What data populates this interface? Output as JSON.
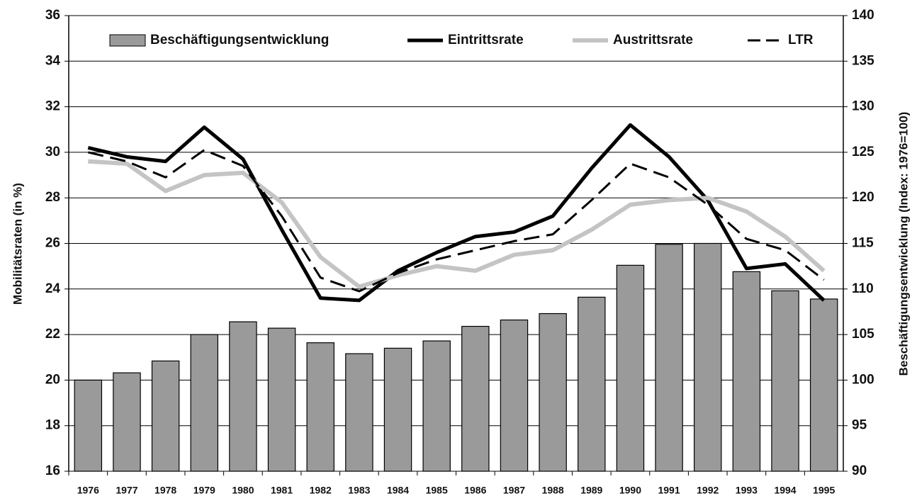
{
  "chart_data": {
    "type": "bar_line",
    "categories": [
      "1976",
      "1977",
      "1978",
      "1979",
      "1980",
      "1981",
      "1982",
      "1983",
      "1984",
      "1985",
      "1986",
      "1987",
      "1988",
      "1989",
      "1990",
      "1991",
      "1992",
      "1993",
      "1994",
      "1995"
    ],
    "y_label": "Mobilitätsraten (in %)",
    "y2_label": "Beschäftigungsentwicklung (Index: 1976=100)",
    "ylim": [
      16,
      36
    ],
    "yticks": [
      16,
      18,
      20,
      22,
      24,
      26,
      28,
      30,
      32,
      34,
      36
    ],
    "y2lim": [
      90,
      140
    ],
    "y2ticks": [
      90,
      95,
      100,
      105,
      110,
      115,
      120,
      125,
      130,
      135,
      140
    ],
    "grid": true,
    "legend": "top",
    "series": [
      {
        "name": "Beschäftigungsentwicklung",
        "type": "bar",
        "axis": "y2",
        "color": "#9a9a9a",
        "values": [
          100.0,
          100.8,
          102.1,
          105.0,
          106.4,
          105.7,
          104.1,
          102.9,
          103.5,
          104.3,
          105.9,
          106.6,
          107.3,
          109.1,
          112.6,
          114.9,
          115.0,
          111.9,
          109.8,
          108.9
        ]
      },
      {
        "name": "Eintrittsrate",
        "type": "line",
        "color": "#000000",
        "width": 5,
        "dash": false,
        "values": [
          30.2,
          29.8,
          29.6,
          31.1,
          29.7,
          26.6,
          23.6,
          23.5,
          24.8,
          25.6,
          26.3,
          26.5,
          27.2,
          29.3,
          31.2,
          29.8,
          27.9,
          24.9,
          25.1,
          23.5
        ]
      },
      {
        "name": "Austrittsrate",
        "type": "line",
        "color": "#c4c4c4",
        "width": 6,
        "dash": false,
        "values": [
          29.6,
          29.5,
          28.3,
          29.0,
          29.1,
          27.8,
          25.4,
          24.1,
          24.6,
          25.0,
          24.8,
          25.5,
          25.7,
          26.6,
          27.7,
          27.9,
          28.0,
          27.4,
          26.3,
          24.8
        ]
      },
      {
        "name": "LTR",
        "type": "line",
        "color": "#000000",
        "width": 3,
        "dash": true,
        "values": [
          30.0,
          29.6,
          28.9,
          30.1,
          29.4,
          27.2,
          24.5,
          23.9,
          24.7,
          25.3,
          25.7,
          26.1,
          26.4,
          27.9,
          29.5,
          28.9,
          27.7,
          26.2,
          25.7,
          24.4
        ]
      }
    ]
  }
}
